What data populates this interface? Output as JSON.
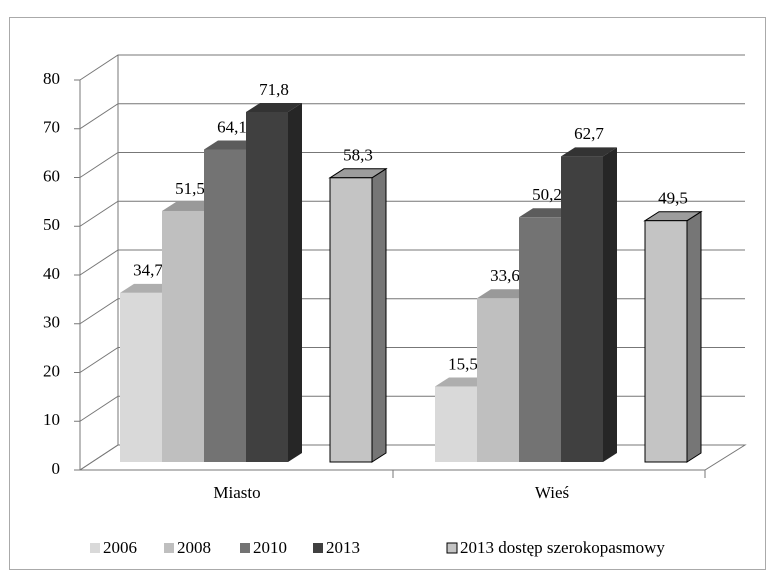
{
  "chart_data": {
    "type": "bar3d",
    "categories": [
      "Miasto",
      "Wieś"
    ],
    "series": [
      {
        "name": "2006",
        "color": "#d9d9d9",
        "values": [
          34.7,
          15.5
        ],
        "value_labels": [
          "34,7",
          "15,5"
        ]
      },
      {
        "name": "2008",
        "color": "#bfbfbf",
        "values": [
          51.5,
          33.6
        ],
        "value_labels": [
          "51,5",
          "33,6"
        ]
      },
      {
        "name": "2010",
        "color": "#737373",
        "values": [
          64.1,
          50.2
        ],
        "value_labels": [
          "64,1",
          "50,2"
        ]
      },
      {
        "name": "2013",
        "color": "#404040",
        "values": [
          71.8,
          62.7
        ],
        "value_labels": [
          "71,8",
          "62,7"
        ]
      },
      {
        "name": "2013 dostęp szerokopasmowy",
        "color": "#c4c4c4",
        "edgecolor": "#000000",
        "values": [
          58.3,
          49.5
        ],
        "value_labels": [
          "58,3",
          "49,5"
        ]
      }
    ],
    "ylim": [
      0,
      80
    ],
    "yticks": [
      0,
      10,
      20,
      30,
      40,
      50,
      60,
      70,
      80
    ],
    "grid": true,
    "legend": "bottom"
  }
}
